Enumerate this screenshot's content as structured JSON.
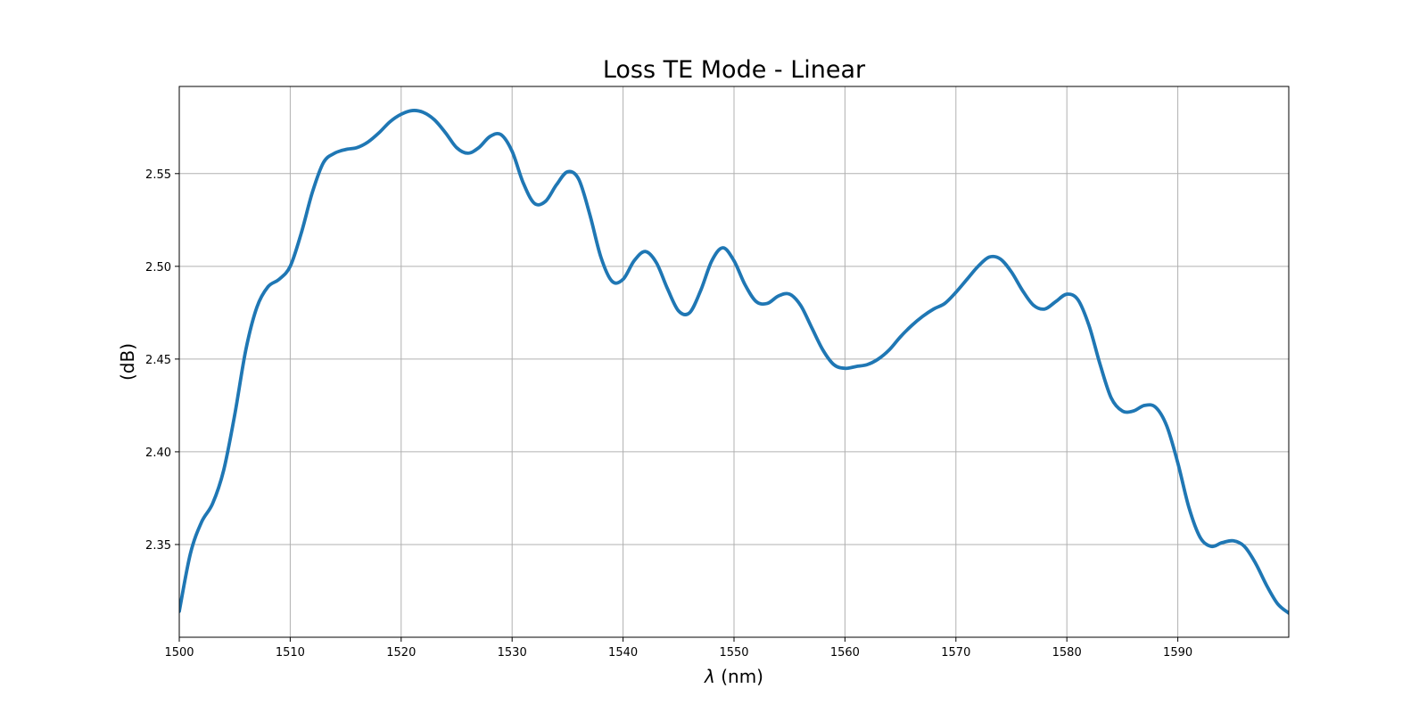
{
  "chart_data": {
    "type": "line",
    "title": "Loss TE Mode - Linear",
    "xlabel": "λ (nm)",
    "ylabel": "(dB)",
    "xlim": [
      1500,
      1600
    ],
    "ylim": [
      2.3,
      2.597
    ],
    "x_ticks": [
      1500,
      1510,
      1520,
      1530,
      1540,
      1550,
      1560,
      1570,
      1580,
      1590
    ],
    "y_ticks": [
      2.35,
      2.4,
      2.45,
      2.5,
      2.55
    ],
    "grid": true,
    "legend": "none",
    "series": [
      {
        "color": "#1f77b4",
        "x": [
          1500,
          1501,
          1502,
          1503,
          1504,
          1505,
          1506,
          1507,
          1508,
          1509,
          1510,
          1511,
          1512,
          1513,
          1514,
          1515,
          1516,
          1517,
          1518,
          1519,
          1520,
          1521,
          1522,
          1523,
          1524,
          1525,
          1526,
          1527,
          1528,
          1529,
          1530,
          1531,
          1532,
          1533,
          1534,
          1535,
          1536,
          1537,
          1538,
          1539,
          1540,
          1541,
          1542,
          1543,
          1544,
          1545,
          1546,
          1547,
          1548,
          1549,
          1550,
          1551,
          1552,
          1553,
          1554,
          1555,
          1556,
          1557,
          1558,
          1559,
          1560,
          1561,
          1562,
          1563,
          1564,
          1565,
          1566,
          1567,
          1568,
          1569,
          1570,
          1571,
          1572,
          1573,
          1574,
          1575,
          1576,
          1577,
          1578,
          1579,
          1580,
          1581,
          1582,
          1583,
          1584,
          1585,
          1586,
          1587,
          1588,
          1589,
          1590,
          1591,
          1592,
          1593,
          1594,
          1595,
          1596,
          1597,
          1598,
          1599,
          1600
        ],
        "y": [
          2.314,
          2.345,
          2.362,
          2.372,
          2.39,
          2.42,
          2.455,
          2.478,
          2.489,
          2.493,
          2.5,
          2.518,
          2.54,
          2.556,
          2.561,
          2.563,
          2.564,
          2.567,
          2.572,
          2.578,
          2.582,
          2.584,
          2.583,
          2.579,
          2.572,
          2.564,
          2.561,
          2.564,
          2.57,
          2.571,
          2.562,
          2.545,
          2.534,
          2.535,
          2.544,
          2.551,
          2.547,
          2.528,
          2.505,
          2.492,
          2.493,
          2.503,
          2.508,
          2.502,
          2.488,
          2.476,
          2.475,
          2.487,
          2.503,
          2.51,
          2.503,
          2.49,
          2.481,
          2.48,
          2.484,
          2.485,
          2.479,
          2.467,
          2.455,
          2.447,
          2.445,
          2.446,
          2.447,
          2.45,
          2.455,
          2.462,
          2.468,
          2.473,
          2.477,
          2.48,
          2.486,
          2.493,
          2.5,
          2.505,
          2.504,
          2.497,
          2.487,
          2.479,
          2.477,
          2.481,
          2.485,
          2.482,
          2.468,
          2.447,
          2.429,
          2.422,
          2.422,
          2.425,
          2.424,
          2.414,
          2.394,
          2.37,
          2.354,
          2.349,
          2.351,
          2.352,
          2.349,
          2.34,
          2.328,
          2.318,
          2.313
        ]
      }
    ]
  }
}
